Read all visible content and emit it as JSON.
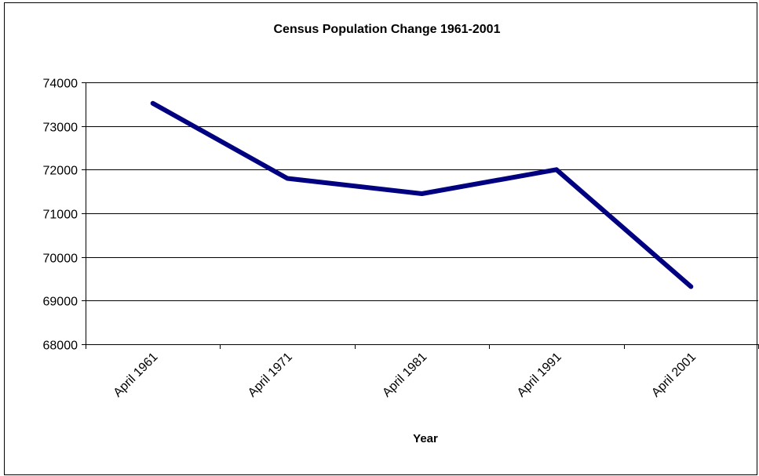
{
  "chart_data": {
    "type": "line",
    "title": "Census Population Change 1961-2001",
    "xlabel": "Year",
    "ylabel": "",
    "categories": [
      "April 1961",
      "April 1971",
      "April 1981",
      "April 1991",
      "April 2001"
    ],
    "series": [
      {
        "values": [
          73520,
          71800,
          71450,
          72000,
          69320
        ],
        "color": "#000080"
      }
    ],
    "ylim": [
      68000,
      74000
    ],
    "yticks": [
      68000,
      69000,
      70000,
      71000,
      72000,
      73000,
      74000
    ],
    "grid": true,
    "legend": "none"
  }
}
